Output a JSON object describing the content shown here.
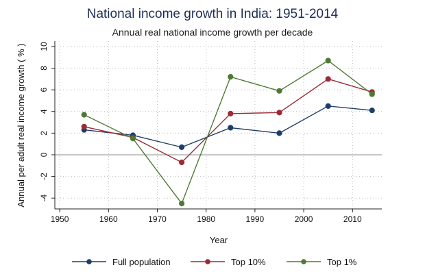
{
  "chart_data": {
    "type": "line",
    "title": "National income growth in India: 1951-2014",
    "subtitle": "Annual real national income growth per decade",
    "xlabel": "Year",
    "ylabel": "Annual per adult real income growth ( % )",
    "xlim": [
      1949,
      2016
    ],
    "ylim": [
      -5,
      10.5
    ],
    "xticks": [
      1950,
      1960,
      1970,
      1980,
      1990,
      2000,
      2010
    ],
    "yticks": [
      -4,
      -2,
      0,
      2,
      4,
      6,
      8,
      10
    ],
    "x": [
      1955,
      1965,
      1975,
      1985,
      1995,
      2005,
      2014
    ],
    "zero_line": true,
    "grid": "dotted",
    "legend_position": "bottom",
    "series": [
      {
        "name": "Full population",
        "color": "#1f3d6b",
        "values": [
          2.3,
          1.8,
          0.7,
          2.5,
          2.0,
          4.5,
          4.1
        ]
      },
      {
        "name": "Top 10%",
        "color": "#9b2c35",
        "values": [
          2.6,
          1.6,
          -0.7,
          3.8,
          3.9,
          7.0,
          5.8
        ]
      },
      {
        "name": "Top 1%",
        "color": "#4d7a32",
        "values": [
          3.7,
          1.5,
          -4.5,
          7.2,
          5.9,
          8.7,
          5.6
        ]
      }
    ]
  }
}
